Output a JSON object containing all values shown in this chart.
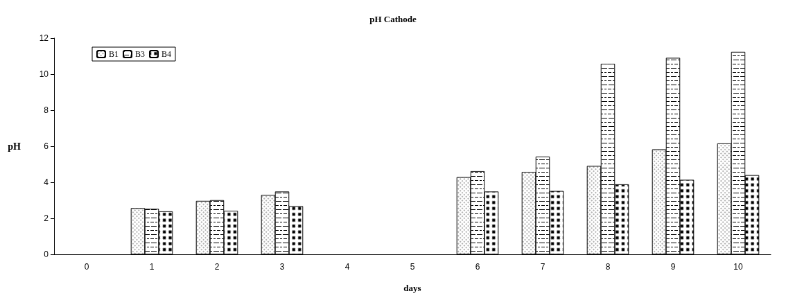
{
  "chart_data": {
    "type": "bar",
    "title": "pH Cathode",
    "xlabel": "days",
    "ylabel": "pH",
    "categories": [
      "0",
      "1",
      "2",
      "3",
      "4",
      "5",
      "6",
      "7",
      "8",
      "9",
      "10"
    ],
    "series": [
      {
        "name": "B1",
        "color": "#ffffff",
        "values": [
          null,
          2.56,
          2.96,
          3.29,
          null,
          null,
          4.28,
          4.57,
          4.9,
          5.82,
          6.15
        ]
      },
      {
        "name": "B3",
        "color": "#ffffff",
        "values": [
          null,
          2.52,
          3.0,
          3.48,
          null,
          null,
          4.61,
          5.42,
          10.57,
          10.9,
          11.23
        ]
      },
      {
        "name": "B4",
        "color": "#ffffff",
        "values": [
          null,
          2.38,
          2.41,
          2.67,
          null,
          null,
          3.48,
          3.51,
          3.88,
          4.13,
          4.39
        ]
      }
    ],
    "ylim": [
      0,
      12
    ],
    "yticks": [
      0,
      2,
      4,
      6,
      8,
      10,
      12
    ],
    "grid": false,
    "legend": "top left"
  }
}
